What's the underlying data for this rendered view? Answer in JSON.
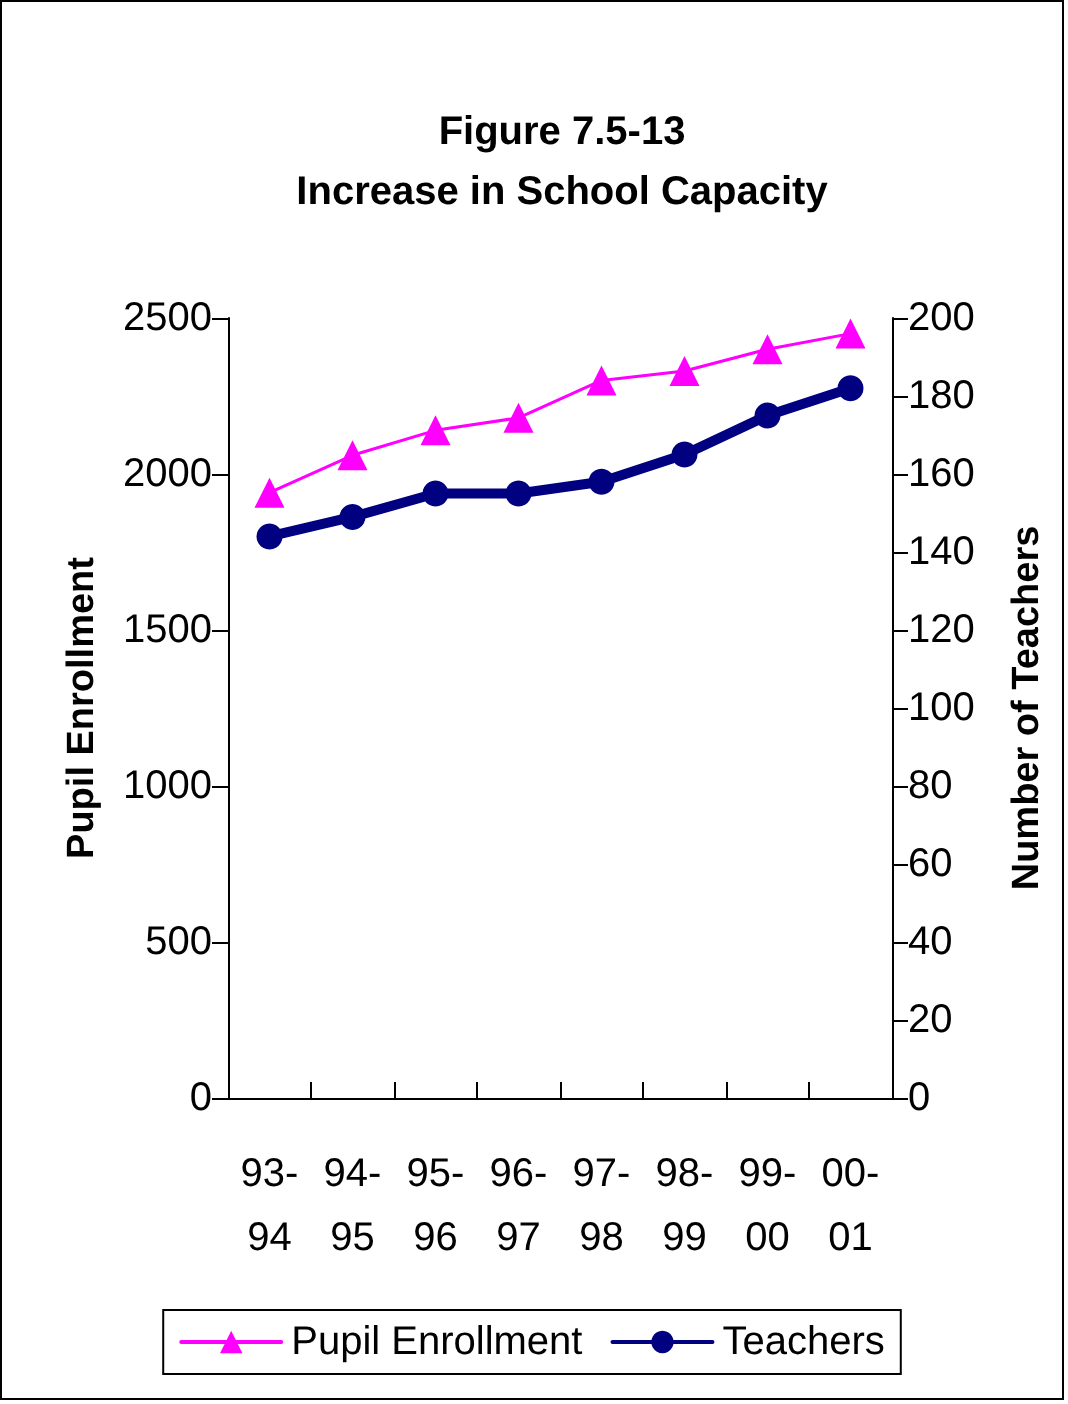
{
  "chart_data": {
    "type": "line",
    "title": "Figure 7.5-13\nIncrease in School Capacity",
    "ylabel": "Pupil Enrollment",
    "y2label": "Number of Teachers",
    "categories": [
      "93-94",
      "94-95",
      "95-96",
      "96-97",
      "97-98",
      "98-99",
      "99-00",
      "00-01"
    ],
    "series": [
      {
        "name": "Pupil Enrollment",
        "color": "#ff00ff",
        "marker": "triangle",
        "values": [
          1940,
          2060,
          2140,
          2180,
          2300,
          2330,
          2400,
          2450
        ]
      },
      {
        "name": "Teachers",
        "color": "#000080",
        "marker": "circle",
        "axis": "y2",
        "values": [
          144,
          149,
          155,
          155,
          158,
          165,
          175,
          182
        ]
      }
    ],
    "ylim": [
      0,
      2500
    ],
    "yticks": [
      0,
      500,
      1000,
      1500,
      2000,
      2500
    ],
    "y2lim": [
      0,
      200
    ],
    "y2ticks": [
      0,
      20,
      40,
      60,
      80,
      100,
      120,
      140,
      160,
      180,
      200
    ],
    "grid": false,
    "legend": "bottom"
  }
}
